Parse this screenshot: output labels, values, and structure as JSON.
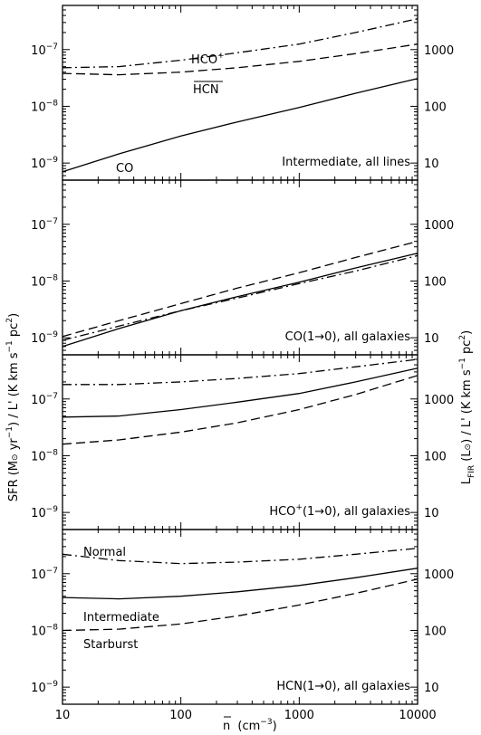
{
  "chart_data": {
    "type": "line",
    "x_axis": {
      "label_n": "n",
      "label_units": "(cm",
      "label_exp": "−3",
      "label_close": ")",
      "scale": "log",
      "range": [
        10,
        10000
      ],
      "ticks": [
        {
          "value": 10,
          "label": "10"
        },
        {
          "value": 100,
          "label": "100"
        },
        {
          "value": 1000,
          "label": "1000"
        },
        {
          "value": 10000,
          "label": "10000"
        }
      ]
    },
    "left_axis": {
      "scale": "log",
      "range": [
        5e-10,
        6e-07
      ],
      "ticks": [
        {
          "value": 1e-09,
          "base": "10",
          "exp": "−9"
        },
        {
          "value": 1e-08,
          "base": "10",
          "exp": "−8"
        },
        {
          "value": 1e-07,
          "base": "10",
          "exp": "−7"
        }
      ],
      "label_parts": [
        "SFR (M",
        "⊙",
        " yr",
        "−1",
        ") / L' (K km s",
        "−1",
        " pc",
        "2",
        ")"
      ]
    },
    "right_axis": {
      "scale": "log",
      "ticks": [
        {
          "value": 10,
          "label": "10"
        },
        {
          "value": 100,
          "label": "100"
        },
        {
          "value": 1000,
          "label": "1000"
        }
      ],
      "label_parts": [
        "L",
        "FIR",
        " (L",
        "⊙",
        ") / L' (K km s",
        "−1",
        " pc",
        "2",
        ")"
      ]
    },
    "panels": [
      {
        "title": "Intermediate, all lines",
        "series": [
          {
            "name": "HCO+",
            "label_base": "HCO",
            "label_sup": "+",
            "style": "dashdot",
            "x": [
              10,
              30,
              100,
              300,
              1000,
              3000,
              10000
            ],
            "y": [
              4.8e-08,
              5e-08,
              6.5e-08,
              8.8e-08,
              1.25e-07,
              2e-07,
              3.5e-07
            ]
          },
          {
            "name": "HCN",
            "label_base": "HCN",
            "style": "dashed",
            "x": [
              10,
              30,
              100,
              300,
              1000,
              3000,
              10000
            ],
            "y": [
              3.8e-08,
              3.6e-08,
              4e-08,
              4.8e-08,
              6.2e-08,
              8.5e-08,
              1.25e-07
            ]
          },
          {
            "name": "CO",
            "label_base": "CO",
            "style": "solid",
            "x": [
              10,
              30,
              100,
              300,
              1000,
              3000,
              10000
            ],
            "y": [
              7e-10,
              1.45e-09,
              3e-09,
              5.3e-09,
              9.5e-09,
              1.7e-08,
              3.1e-08
            ]
          }
        ]
      },
      {
        "title": "CO(1→0), all galaxies",
        "series": [
          {
            "name": "Normal",
            "style": "dashdot",
            "x": [
              10,
              30,
              100,
              300,
              1000,
              3000,
              10000
            ],
            "y": [
              9e-10,
              1.6e-09,
              3e-09,
              5e-09,
              9e-09,
              1.5e-08,
              2.8e-08
            ]
          },
          {
            "name": "Intermediate",
            "style": "solid",
            "x": [
              10,
              30,
              100,
              300,
              1000,
              3000,
              10000
            ],
            "y": [
              7e-10,
              1.45e-09,
              3e-09,
              5.3e-09,
              9.5e-09,
              1.7e-08,
              3.1e-08
            ]
          },
          {
            "name": "Starburst",
            "style": "dashed",
            "x": [
              10,
              30,
              100,
              300,
              1000,
              3000,
              10000
            ],
            "y": [
              1.05e-09,
              2e-09,
              4e-09,
              7.5e-09,
              1.4e-08,
              2.6e-08,
              5e-08
            ]
          }
        ]
      },
      {
        "title_base": "HCO",
        "title_sup": "+",
        "title_rest": "(1→0), all galaxies",
        "series": [
          {
            "name": "Normal",
            "style": "dashdot",
            "x": [
              10,
              30,
              100,
              300,
              1000,
              3000,
              10000
            ],
            "y": [
              1.8e-07,
              1.8e-07,
              2e-07,
              2.3e-07,
              2.8e-07,
              3.7e-07,
              5e-07
            ]
          },
          {
            "name": "Intermediate",
            "style": "solid",
            "x": [
              10,
              30,
              100,
              300,
              1000,
              3000,
              10000
            ],
            "y": [
              4.8e-08,
              5e-08,
              6.5e-08,
              8.8e-08,
              1.25e-07,
              2e-07,
              3.5e-07
            ]
          },
          {
            "name": "Starburst",
            "style": "dashed",
            "x": [
              10,
              30,
              100,
              300,
              1000,
              3000,
              10000
            ],
            "y": [
              1.6e-08,
              1.9e-08,
              2.6e-08,
              3.8e-08,
              6.5e-08,
              1.2e-07,
              2.6e-07
            ]
          }
        ]
      },
      {
        "title": "HCN(1→0), all galaxies",
        "series": [
          {
            "name": "Normal",
            "label_base": "Normal",
            "style": "dashdot",
            "x": [
              10,
              30,
              100,
              300,
              1000,
              3000,
              10000
            ],
            "y": [
              2.2e-07,
              1.7e-07,
              1.5e-07,
              1.6e-07,
              1.8e-07,
              2.2e-07,
              2.8e-07
            ]
          },
          {
            "name": "Intermediate",
            "label_base": "Intermediate",
            "style": "solid",
            "x": [
              10,
              30,
              100,
              300,
              1000,
              3000,
              10000
            ],
            "y": [
              3.8e-08,
              3.6e-08,
              4e-08,
              4.8e-08,
              6.2e-08,
              8.5e-08,
              1.25e-07
            ]
          },
          {
            "name": "Starburst",
            "label_base": "Starburst",
            "style": "dashed",
            "x": [
              10,
              30,
              100,
              300,
              1000,
              3000,
              10000
            ],
            "y": [
              1e-08,
              1.05e-08,
              1.3e-08,
              1.8e-08,
              2.8e-08,
              4.5e-08,
              8e-08
            ]
          }
        ]
      }
    ]
  }
}
